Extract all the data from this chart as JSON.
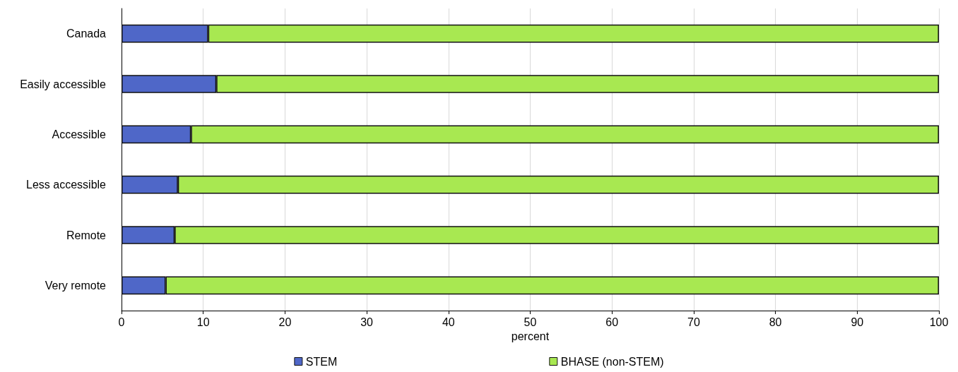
{
  "chart_data": {
    "type": "bar",
    "orientation": "horizontal",
    "stacked": true,
    "xlabel": "percent",
    "categories": [
      "Canada",
      "Easily accessible",
      "Accessible",
      "Less accessible",
      "Remote",
      "Very remote"
    ],
    "series": [
      {
        "name": "STEM",
        "color": "#4f67c8",
        "values": [
          10.6,
          11.6,
          8.5,
          6.9,
          6.5,
          5.4
        ]
      },
      {
        "name": "BHASE (non-STEM)",
        "color": "#a8e851",
        "values": [
          89.4,
          88.4,
          91.5,
          93.1,
          93.5,
          94.6
        ]
      }
    ],
    "xlim": [
      0,
      100
    ],
    "xticks": [
      0,
      10,
      20,
      30,
      40,
      50,
      60,
      70,
      80,
      90,
      100
    ],
    "grid": "x",
    "legend": "bottom"
  }
}
